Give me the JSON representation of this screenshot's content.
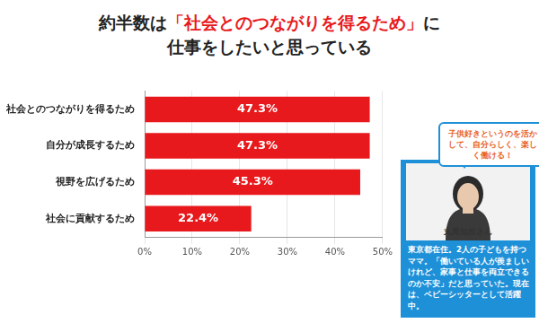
{
  "chart_data": {
    "type": "bar",
    "orientation": "horizontal",
    "title": [
      "約半数は「社会とのつながりを得るため」に",
      "仕事をしたいと思っている"
    ],
    "categories": [
      "社会とのつながりを得るため",
      "自分が成長するため",
      "視野を広げるため",
      "社会に貢献するため"
    ],
    "values": [
      47.3,
      47.3,
      45.3,
      22.4
    ],
    "value_labels": [
      "47.3%",
      "47.3%",
      "45.3%",
      "22.4%"
    ],
    "data_labels": true,
    "color": "#e8191c",
    "xlim": [
      0,
      50
    ],
    "xticks": [
      {
        "value": 0,
        "label": "0%"
      },
      {
        "value": 10,
        "label": "10%"
      },
      {
        "value": 20,
        "label": "20%"
      },
      {
        "value": 30,
        "label": "30%"
      },
      {
        "value": 40,
        "label": "40%"
      },
      {
        "value": 50,
        "label": "50%"
      }
    ],
    "grid": true,
    "annotations": {
      "quote": "子供好きというのを活かして、自分らしく、楽しく働ける！",
      "name": "丸尾知枝さん",
      "caption": "東京都在住。2人の子どもを持つママ。「働いている人が羨ましいけれど、家事と仕事を両立できるのか不安」だと思っていた。現在は、ベビーシッターとして活躍中。"
    }
  }
}
